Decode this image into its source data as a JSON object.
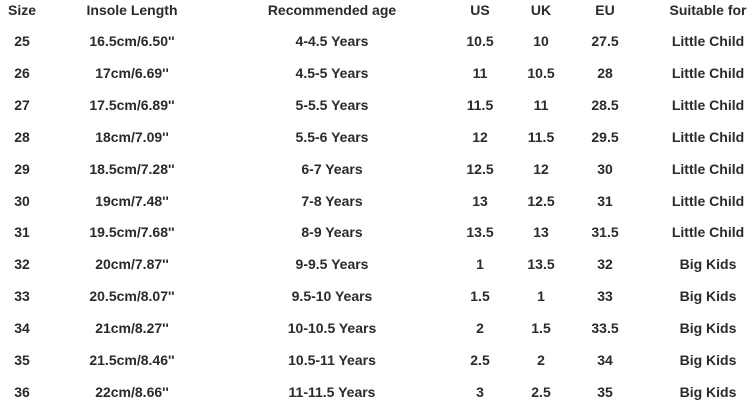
{
  "headers": [
    "Size",
    "Insole Length",
    "Recommended age",
    "US",
    "UK",
    "EU",
    "Suitable for"
  ],
  "rows": [
    [
      "25",
      "16.5cm/6.50''",
      "4-4.5 Years",
      "10.5",
      "10",
      "27.5",
      "Little Child"
    ],
    [
      "26",
      "17cm/6.69''",
      "4.5-5 Years",
      "11",
      "10.5",
      "28",
      "Little Child"
    ],
    [
      "27",
      "17.5cm/6.89''",
      "5-5.5 Years",
      "11.5",
      "11",
      "28.5",
      "Little Child"
    ],
    [
      "28",
      "18cm/7.09''",
      "5.5-6 Years",
      "12",
      "11.5",
      "29.5",
      "Little Child"
    ],
    [
      "29",
      "18.5cm/7.28''",
      "6-7 Years",
      "12.5",
      "12",
      "30",
      "Little Child"
    ],
    [
      "30",
      "19cm/7.48''",
      "7-8 Years",
      "13",
      "12.5",
      "31",
      "Little Child"
    ],
    [
      "31",
      "19.5cm/7.68''",
      "8-9 Years",
      "13.5",
      "13",
      "31.5",
      "Little Child"
    ],
    [
      "32",
      "20cm/7.87''",
      "9-9.5 Years",
      "1",
      "13.5",
      "32",
      "Big Kids"
    ],
    [
      "33",
      "20.5cm/8.07''",
      "9.5-10 Years",
      "1.5",
      "1",
      "33",
      "Big Kids"
    ],
    [
      "34",
      "21cm/8.27''",
      "10-10.5 Years",
      "2",
      "1.5",
      "33.5",
      "Big Kids"
    ],
    [
      "35",
      "21.5cm/8.46''",
      "10.5-11 Years",
      "2.5",
      "2",
      "34",
      "Big Kids"
    ],
    [
      "36",
      "22cm/8.66''",
      "11-11.5 Years",
      "3",
      "2.5",
      "35",
      "Big Kids"
    ]
  ]
}
